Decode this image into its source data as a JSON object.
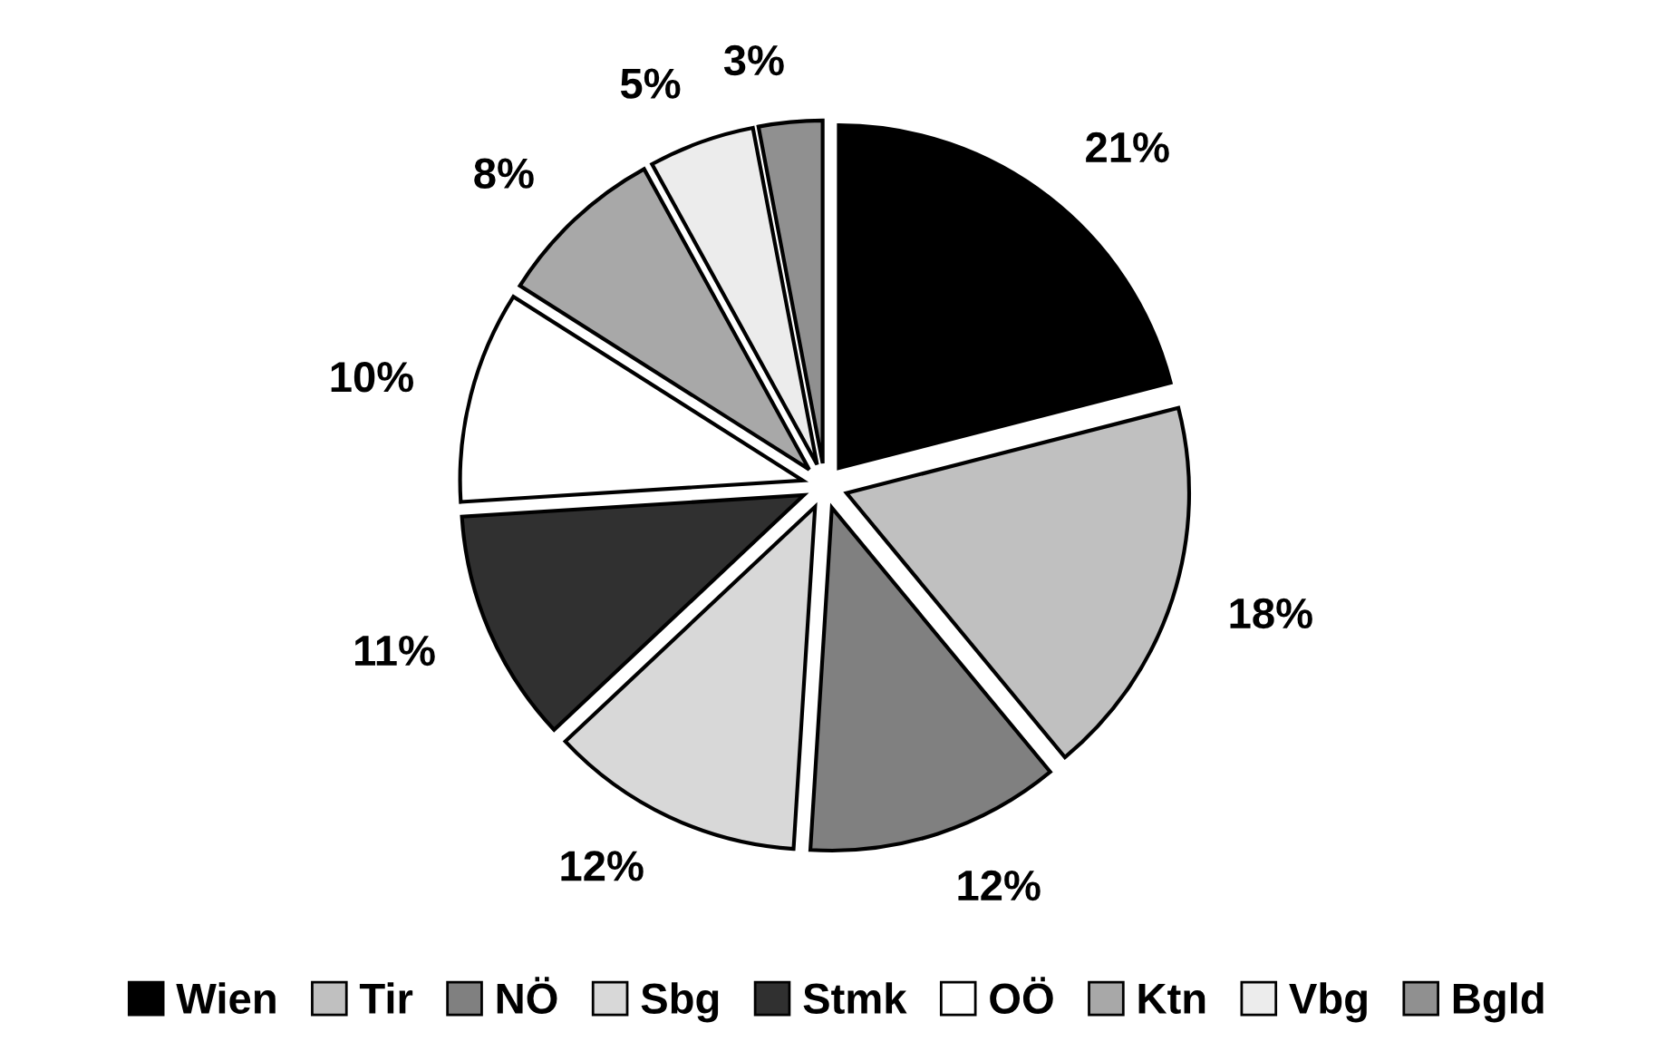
{
  "chart_data": {
    "type": "pie",
    "categories": [
      "Wien",
      "Tir",
      "NÖ",
      "Sbg",
      "Stmk",
      "OÖ",
      "Ktn",
      "Vbg",
      "Bgld"
    ],
    "values": [
      21,
      18,
      12,
      12,
      11,
      10,
      8,
      5,
      3
    ],
    "value_labels": [
      "21%",
      "18%",
      "12%",
      "12%",
      "11%",
      "10%",
      "8%",
      "5%",
      "3%"
    ],
    "colors": [
      "#000000",
      "#c0c0c0",
      "#808080",
      "#d8d8d8",
      "#303030",
      "#ffffff",
      "#a8a8a8",
      "#ececec",
      "#909090"
    ],
    "legend": "bottom"
  }
}
